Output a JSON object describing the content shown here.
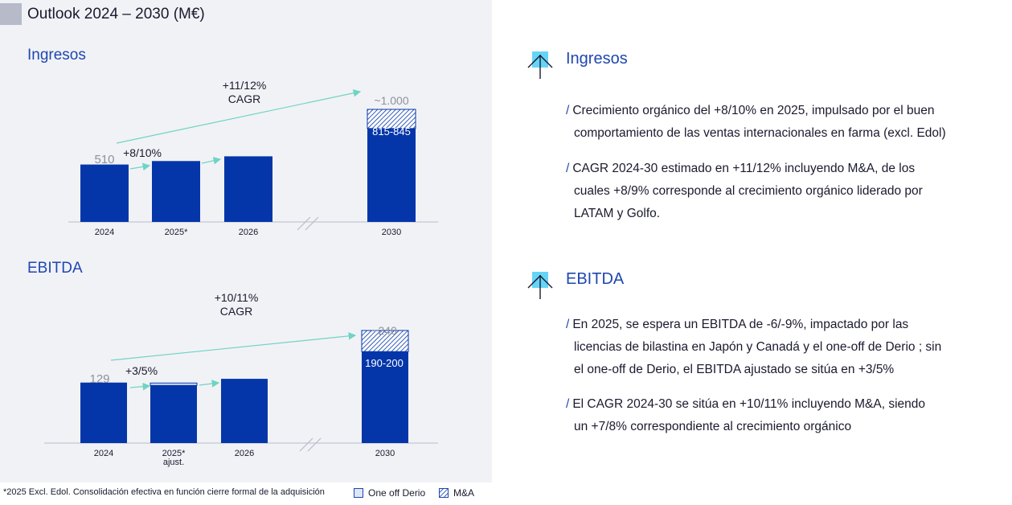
{
  "page_title": "Outlook  2024 – 2030 (M€)",
  "colors": {
    "bar": "#0536a9",
    "accent": "#1f47b0",
    "arrow": "#6fd4c3",
    "icon_square": "#65d4f6",
    "panel_bg": "#f1f2f6",
    "oneoff_fill": "#dde6f7",
    "ma_hatch": "hatched-blue"
  },
  "icons": {
    "growth_icon": "growth-arrow-icon",
    "break_icon": "axis-break-icon"
  },
  "chart_data": [
    {
      "type": "bar",
      "section_title": "Ingresos",
      "categories": [
        "2024",
        "2025*",
        "2026",
        "2030"
      ],
      "values": [
        510,
        541,
        583,
        830
      ],
      "stacked_ma_top": 1000,
      "label_2024": "510",
      "label_2030_total": "~1.000",
      "label_2030_organic": "815-845",
      "growth_label": "+8/10%",
      "cagr_label_line1": "+11/12%",
      "cagr_label_line2": "CAGR",
      "axis_break": "between 2026 and 2030",
      "ylim": [
        0,
        1000
      ]
    },
    {
      "type": "bar",
      "section_title": "EBITDA",
      "categories": [
        "2024",
        "2025*",
        "2026",
        "2030"
      ],
      "category_sublabels": [
        "",
        "ajust.",
        "",
        ""
      ],
      "values": [
        129,
        123,
        137,
        195
      ],
      "oneoff_top_2025": 128,
      "stacked_ma_top": 240,
      "label_2024": "129",
      "label_2030_total": "~240",
      "label_2030_organic": "190-200",
      "growth_label": "+3/5%",
      "cagr_label_line1": "+10/11%",
      "cagr_label_line2": "CAGR",
      "axis_break": "between 2026 and 2030",
      "ylim": [
        0,
        240
      ]
    }
  ],
  "footnote": "*2025 Excl. Edol. Consolidación efectiva en función cierre formal de la adquisición",
  "legend": {
    "oneoff": "One off Derio",
    "ma": "M&A"
  },
  "right": {
    "ingresos": {
      "heading": "Ingresos",
      "bullets": [
        {
          "slash": "/",
          "line1": "Crecimiento orgánico del +8/10% en 2025, impulsado por el buen",
          "line2": "comportamiento de las ventas internacionales en farma (excl. Edol)"
        },
        {
          "slash": "/",
          "line1": "CAGR 2024-30 estimado en +11/12% incluyendo M&A, de los",
          "line2": "cuales +8/9% corresponde al crecimiento orgánico liderado por",
          "line3": "LATAM y Golfo."
        }
      ]
    },
    "ebitda": {
      "heading": "EBITDA",
      "bullets": [
        {
          "slash": "/",
          "line1": "En 2025, se espera un EBITDA de -6/-9%, impactado por las",
          "line2": "licencias de bilastina en Japón y Canadá y el one-off de Derio ; sin",
          "line3": "el one-off de Derio, el EBITDA ajustado se sitúa en +3/5%"
        },
        {
          "slash": "/",
          "line1": "El CAGR 2024-30 se sitúa en +10/11% incluyendo M&A, siendo",
          "line2": "un +7/8% correspondiente al crecimiento orgánico"
        }
      ]
    }
  }
}
